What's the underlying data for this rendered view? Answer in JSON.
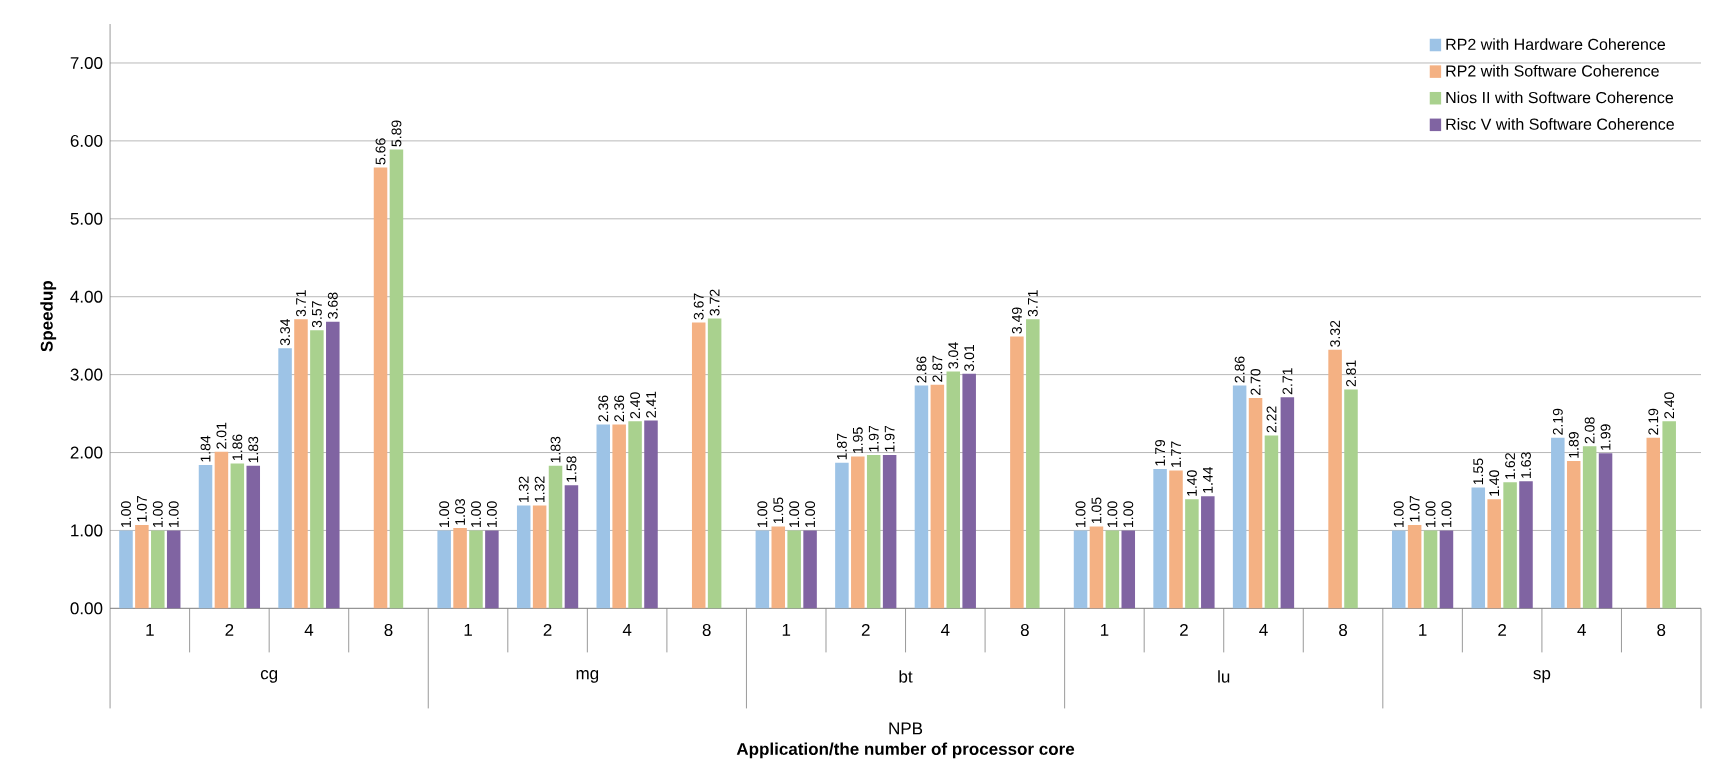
{
  "chart_data": {
    "type": "bar",
    "ylabel": "Speedup",
    "categories": [
      "1",
      "2",
      "4",
      "8",
      "1",
      "2",
      "4",
      "8",
      "1",
      "2",
      "4",
      "8",
      "1",
      "2",
      "4",
      "8",
      "1",
      "2",
      "4",
      "8"
    ],
    "annotations": [
      "cg",
      "mg",
      "bt",
      "lu",
      "sp",
      "NPB",
      "Application/the number of processor core"
    ],
    "ylim": [
      0,
      7.5
    ],
    "yticks": [
      {
        "value": 0,
        "label": "0.00"
      },
      {
        "value": 1,
        "label": "1.00"
      },
      {
        "value": 2,
        "label": "2.00"
      },
      {
        "value": 3,
        "label": "3.00"
      },
      {
        "value": 4,
        "label": "4.00"
      },
      {
        "value": 5,
        "label": "5.00"
      },
      {
        "value": 6,
        "label": "6.00"
      },
      {
        "value": 7,
        "label": "7.00"
      }
    ],
    "grid": "y",
    "legend": "top right",
    "series": [
      {
        "name": "RP2 with Hardware Coherence",
        "color": "#9dc3e6",
        "values": [
          1.0,
          1.84,
          3.34,
          null,
          1.0,
          1.32,
          2.36,
          null,
          1.0,
          1.87,
          2.86,
          null,
          1.0,
          1.79,
          2.86,
          null,
          1.0,
          1.55,
          2.19,
          null
        ],
        "value_labels": [
          "1.00",
          "1.84",
          "3.34",
          null,
          "1.00",
          "1.32",
          "2.36",
          null,
          "1.00",
          "1.87",
          "2.86",
          null,
          "1.00",
          "1.79",
          "2.86",
          null,
          "1.00",
          "1.55",
          "2.19",
          null
        ]
      },
      {
        "name": "RP2 with Software Coherence",
        "color": "#f4b183",
        "values": [
          1.07,
          2.01,
          3.71,
          5.66,
          1.03,
          1.32,
          2.36,
          3.67,
          1.05,
          1.95,
          2.87,
          3.49,
          1.05,
          1.77,
          2.7,
          3.32,
          1.07,
          1.4,
          1.89,
          2.19
        ],
        "value_labels": [
          "1.07",
          "2.01",
          "3.71",
          "5.66",
          "1.03",
          "1.32",
          "2.36",
          "3.67",
          "1.05",
          "1.95",
          "2.87",
          "3.49",
          "1.05",
          "1.77",
          "2.70",
          "3.32",
          "1.07",
          "1.40",
          "1.89",
          "2.19"
        ]
      },
      {
        "name": "Nios II with Software Coherence",
        "color": "#a9d18e",
        "values": [
          1.0,
          1.86,
          3.57,
          5.89,
          1.0,
          1.83,
          2.4,
          3.72,
          1.0,
          1.97,
          3.04,
          3.71,
          1.0,
          1.4,
          2.22,
          2.81,
          1.0,
          1.62,
          2.08,
          2.4
        ],
        "value_labels": [
          "1.00",
          "1.86",
          "3.57",
          "5.89",
          "1.00",
          "1.83",
          "2.40",
          "3.72",
          "1.00",
          "1.97",
          "3.04",
          "3.71",
          "1.00",
          "1.40",
          "2.22",
          "2.81",
          "1.00",
          "1.62",
          "2.08",
          "2.40"
        ]
      },
      {
        "name": "Risc V with Software Coherence",
        "color": "#8064a2",
        "values": [
          1.0,
          1.83,
          3.68,
          null,
          1.0,
          1.58,
          2.41,
          null,
          1.0,
          1.97,
          3.01,
          null,
          1.0,
          1.44,
          2.71,
          null,
          1.0,
          1.63,
          1.99,
          null
        ],
        "value_labels": [
          "1.00",
          "1.83",
          "3.68",
          null,
          "1.00",
          "1.58",
          "2.41",
          null,
          "1.00",
          "1.97",
          "3.01",
          null,
          "1.00",
          "1.44",
          "2.71",
          null,
          "1.00",
          "1.63",
          "1.99",
          null
        ]
      }
    ]
  }
}
